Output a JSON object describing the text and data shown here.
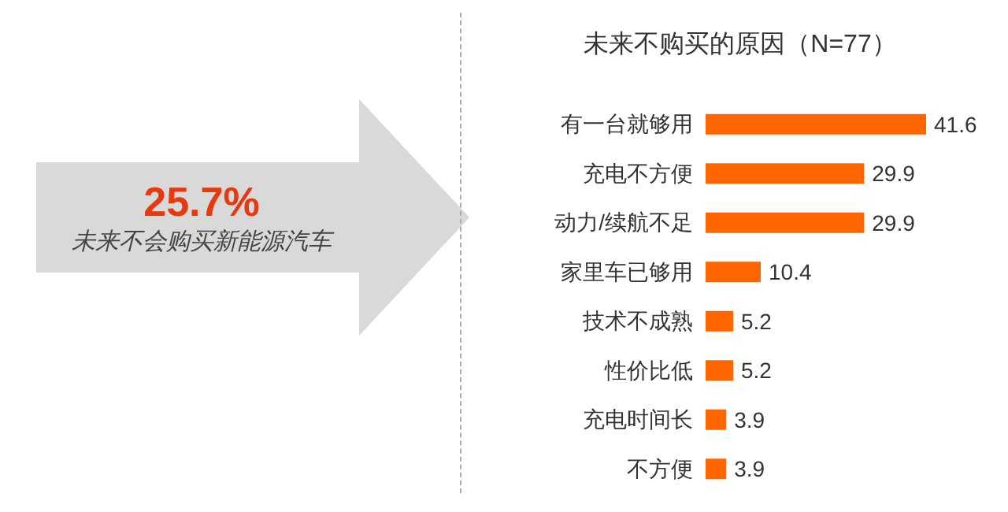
{
  "chart_data": {
    "type": "bar",
    "orientation": "horizontal",
    "title": "未来不购买的原因（N=77）",
    "categories": [
      "有一台就够用",
      "充电不方便",
      "动力/续航不足",
      "家里车已够用",
      "技术不成熟",
      "性价比低",
      "充电时间长",
      "不方便"
    ],
    "values": [
      41.6,
      29.9,
      29.9,
      10.4,
      5.2,
      5.2,
      3.9,
      3.9
    ],
    "color": "#ff6600",
    "data_labels": true,
    "annotations": [
      "25.7%",
      "未来不会购买新能源汽车"
    ]
  }
}
